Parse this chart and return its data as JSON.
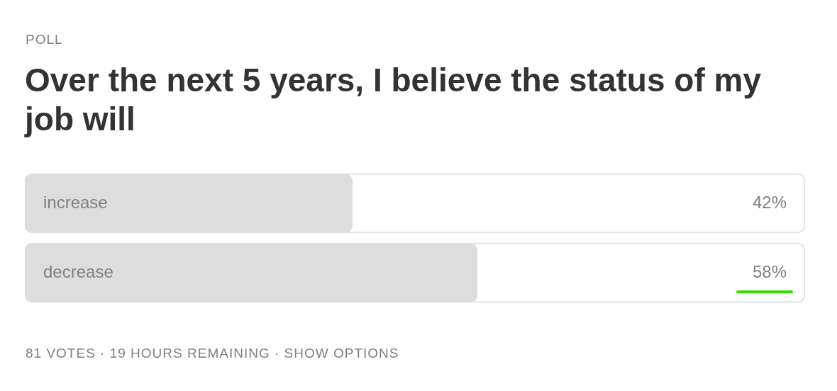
{
  "chart_data": {
    "type": "bar",
    "orientation": "horizontal",
    "subtitle": "POLL",
    "title": "Over the next 5 years, I believe the status of my job will",
    "categories": [
      "increase",
      "decrease"
    ],
    "values": [
      42,
      58
    ],
    "value_labels": [
      "42%",
      "58%"
    ],
    "color": "#dddddd",
    "xlim": [
      0,
      100
    ],
    "tick_labels": false,
    "annotations": [
      "81 VOTES · 19 HOURS REMAINING · SHOW OPTIONS"
    ]
  }
}
